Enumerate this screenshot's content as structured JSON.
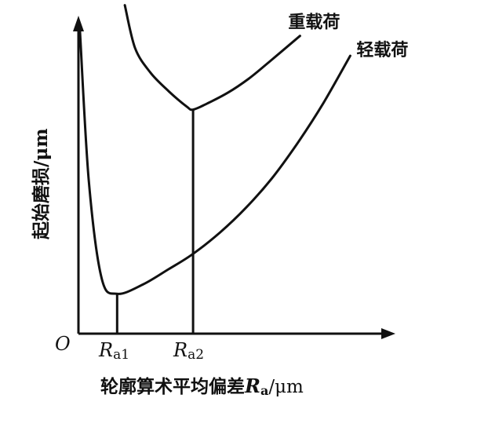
{
  "chart_data": {
    "type": "line",
    "title": "",
    "xlabel_prefix": "轮廓算术平均偏差",
    "xlabel_symbol": "R",
    "xlabel_sub": "a",
    "xlabel_unit": "/μm",
    "ylabel": "起始磨损/μm",
    "origin_label": "O",
    "ticks": [
      {
        "symbol": "R",
        "sub": "a1",
        "x": 1.5
      },
      {
        "symbol": "R",
        "sub": "a2",
        "x": 4.45
      }
    ],
    "xlim": [
      0,
      12
    ],
    "ylim": [
      0,
      10
    ],
    "grid": false,
    "legend": "none",
    "series": [
      {
        "name": "重载荷",
        "x": [
          1.8,
          2.2,
          2.8,
          3.5,
          4.2,
          4.45,
          5.0,
          5.8,
          6.6,
          7.4,
          8.6
        ],
        "y": [
          10.7,
          9.3,
          8.5,
          7.9,
          7.4,
          7.3,
          7.5,
          7.85,
          8.3,
          8.85,
          9.7
        ]
      },
      {
        "name": "轻载荷",
        "x": [
          0.05,
          0.4,
          0.9,
          1.5,
          2.5,
          3.5,
          4.45,
          5.5,
          6.5,
          7.5,
          8.5,
          9.5,
          10.55
        ],
        "y": [
          10.0,
          5.0,
          1.8,
          1.3,
          1.6,
          2.1,
          2.6,
          3.3,
          4.1,
          5.05,
          6.2,
          7.5,
          9.05
        ]
      }
    ],
    "reference_lines": [
      {
        "x": 1.5,
        "y": 1.3
      },
      {
        "x": 4.45,
        "y": 7.3
      }
    ],
    "colors": {
      "line": "#111111",
      "background": "#ffffff"
    }
  }
}
